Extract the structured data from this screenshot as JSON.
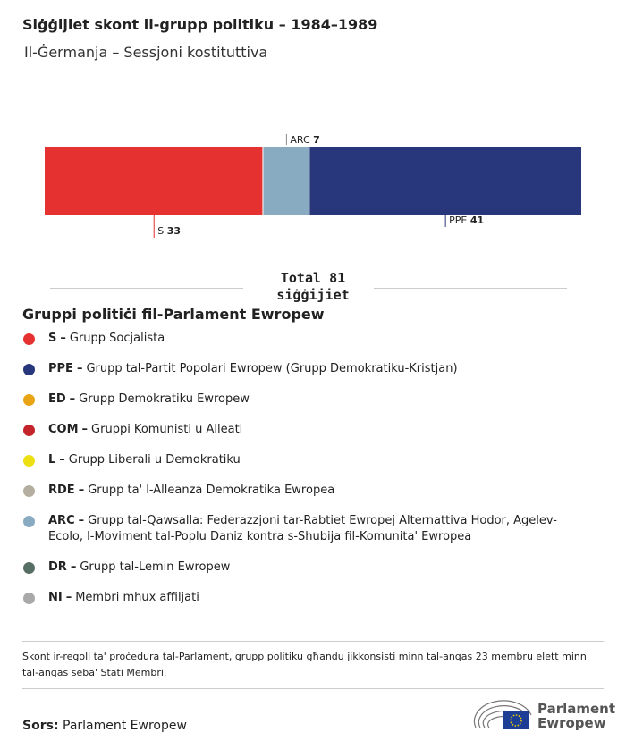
{
  "chart_data": {
    "type": "bar",
    "orientation": "horizontal-stacked",
    "title": "Siġġijiet skont il-grupp politiku – 1984–1989",
    "subtitle": "Il-Ġermanja – Sessjoni kostituttiva",
    "series": [
      {
        "name": "S",
        "color": "#e63131",
        "values": [
          33
        ]
      },
      {
        "name": "ARC",
        "color": "#88abc1",
        "values": [
          7
        ]
      },
      {
        "name": "PPE",
        "color": "#28367c",
        "values": [
          41
        ]
      }
    ],
    "total_label": "Total",
    "total": 81,
    "total_unit": "siġġijiet",
    "legend": {
      "title": "Gruppi politiċi fil-Parlament Ewropew",
      "separator": "–",
      "items": [
        {
          "code": "S",
          "name": "Grupp Socjalista",
          "color": "#e63131"
        },
        {
          "code": "PPE",
          "name": "Grupp tal-Partit Popolari Ewropew (Grupp Demokratiku-Kristjan)",
          "color": "#28367c"
        },
        {
          "code": "ED",
          "name": "Grupp Demokratiku Ewropew",
          "color": "#e9a413"
        },
        {
          "code": "COM",
          "name": "Gruppi Komunisti u Alleati",
          "color": "#c3242b"
        },
        {
          "code": "L",
          "name": "Grupp Liberali u Demokratiku",
          "color": "#ece013"
        },
        {
          "code": "RDE",
          "name": "Grupp ta' l-Alleanza Demokratika Ewropea",
          "color": "#b3ae9f"
        },
        {
          "code": "ARC",
          "name": "Grupp tal-Qawsalla: Federazzjoni tar-Rabtiet Ewropej Alternattiva Hodor, Agelev-Ecolo, l-Moviment tal-Poplu Daniz kontra s-Shubija fil-Komunita' Ewropea",
          "color": "#88abc1"
        },
        {
          "code": "DR",
          "name": "Grupp tal-Lemin Ewropew",
          "color": "#566e63"
        },
        {
          "code": "NI",
          "name": "Membri mhux affiljati",
          "color": "#a9a9a9"
        }
      ]
    },
    "note": "Skont ir-regoli ta' proċedura tal-Parlament, grupp politiku għandu jikkonsisti minn tal-anqas 23 membru elett minn tal-anqas seba' Stati Membri.",
    "source_label": "Sors:",
    "source": "Parlament Ewropew",
    "logo": [
      "Parlament",
      "Ewropew"
    ]
  }
}
